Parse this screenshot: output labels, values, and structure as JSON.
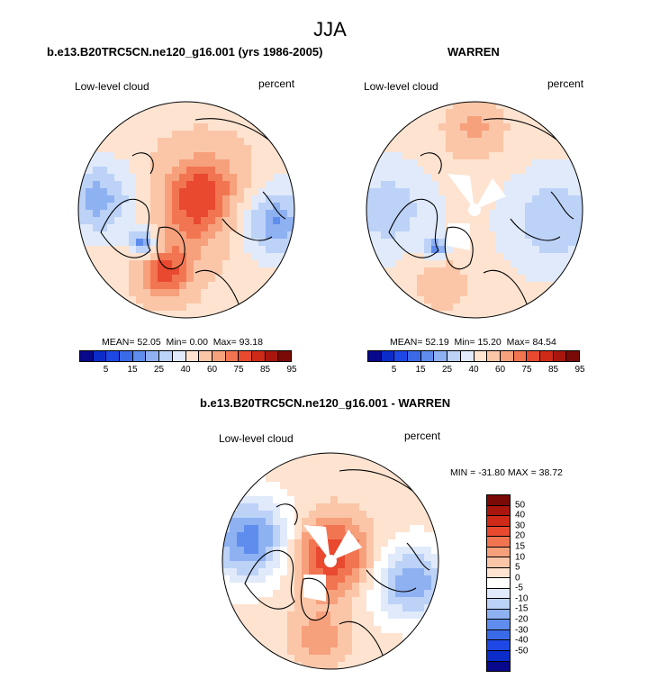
{
  "title": "JJA",
  "colors": {
    "abs_scale": [
      "#08088c",
      "#0c2cc9",
      "#1e48e6",
      "#3a6ae8",
      "#5f8ded",
      "#8eb1f2",
      "#bcd2f7",
      "#e0eafb",
      "#fde3d0",
      "#fbc6a8",
      "#f7a07c",
      "#f27552",
      "#e8492f",
      "#cf2a18",
      "#a8160d",
      "#7a0a05"
    ],
    "diff_scale": [
      "#08088c",
      "#0c2cc9",
      "#1e48e6",
      "#3a6ae8",
      "#5f8ded",
      "#8eb1f2",
      "#bcd2f7",
      "#e0eafb",
      "#ffffff",
      "#fde3d0",
      "#fbc6a8",
      "#f7a07c",
      "#f27552",
      "#e8492f",
      "#cf2a18",
      "#a8160d",
      "#7a0a05"
    ],
    "land_outline": "#000000",
    "missing": "#ffffff"
  },
  "chart_data": [
    {
      "type": "heatmap",
      "projection": "north-polar-stereographic",
      "title": "b.e13.B20TRC5CN.ne120_g16.001 (yrs 1986-2005)",
      "left_label": "Low-level cloud",
      "right_label": "percent",
      "mean_label": "MEAN=",
      "mean": "52.05",
      "min_label": "Min=",
      "min": "0.00",
      "max_label": "Max=",
      "max": "93.18",
      "colorbar_ticks": [
        "5",
        "15",
        "25",
        "40",
        "60",
        "75",
        "85",
        "95"
      ]
    },
    {
      "type": "heatmap",
      "projection": "north-polar-stereographic",
      "title": "WARREN",
      "left_label": "Low-level cloud",
      "right_label": "percent",
      "mean_label": "MEAN=",
      "mean": "52.19",
      "min_label": "Min=",
      "min": "15.20",
      "max_label": "Max=",
      "max": "84.54",
      "colorbar_ticks": [
        "5",
        "15",
        "25",
        "40",
        "60",
        "75",
        "85",
        "95"
      ]
    },
    {
      "type": "heatmap",
      "projection": "north-polar-stereographic",
      "title": "b.e13.B20TRC5CN.ne120_g16.001 - WARREN",
      "left_label": "Low-level cloud",
      "right_label": "percent",
      "min_max_label": "MIN = -31.80 MAX =  38.72",
      "colorbar_ticks": [
        "50",
        "40",
        "30",
        "20",
        "15",
        "10",
        "5",
        "0",
        "-5",
        "-10",
        "-15",
        "-20",
        "-30",
        "-40",
        "-50"
      ]
    }
  ]
}
